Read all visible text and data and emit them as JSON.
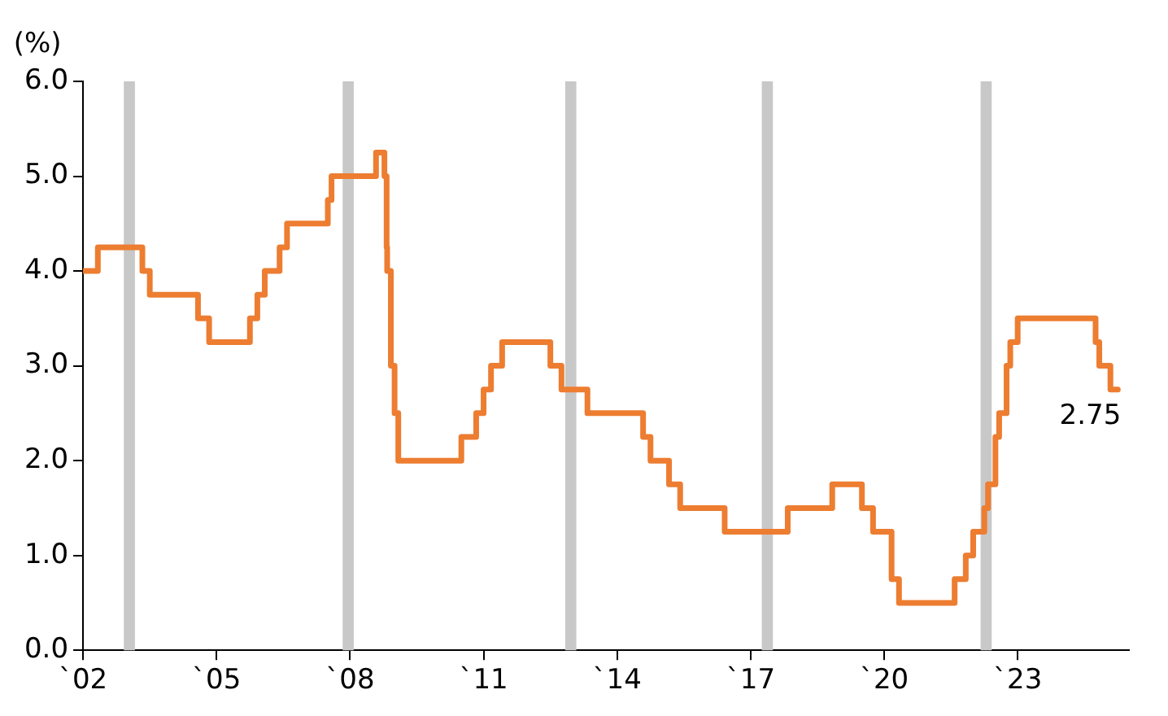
{
  "chart_data": {
    "type": "step",
    "ylabel": "(%)",
    "x": [
      "2002-01",
      "2002-05",
      "2003-05",
      "2003-07",
      "2004-08",
      "2004-11",
      "2005-10",
      "2005-12",
      "2006-02",
      "2006-06",
      "2006-08",
      "2007-07",
      "2007-08",
      "2008-08",
      "2008-10-09",
      "2008-10-27",
      "2008-11",
      "2008-12",
      "2009-01",
      "2009-02",
      "2010-07",
      "2010-11",
      "2011-01",
      "2011-03",
      "2011-06",
      "2012-07",
      "2012-10",
      "2013-05",
      "2014-08",
      "2014-10",
      "2015-03",
      "2015-06",
      "2016-06",
      "2017-11",
      "2018-11",
      "2019-07",
      "2019-10",
      "2020-03",
      "2020-05",
      "2021-08",
      "2021-11",
      "2022-01",
      "2022-04",
      "2022-05",
      "2022-07",
      "2022-08",
      "2022-10",
      "2022-11",
      "2023-01",
      "2024-10",
      "2024-11",
      "2025-02",
      "2025-04"
    ],
    "series": [
      {
        "color": "#ed7d31",
        "values": [
          4.0,
          4.25,
          4.0,
          3.75,
          3.5,
          3.25,
          3.5,
          3.75,
          4.0,
          4.25,
          4.5,
          4.75,
          5.0,
          5.25,
          5.0,
          4.25,
          4.0,
          3.0,
          2.5,
          2.0,
          2.25,
          2.5,
          2.75,
          3.0,
          3.25,
          3.0,
          2.75,
          2.5,
          2.25,
          2.0,
          1.75,
          1.5,
          1.25,
          1.5,
          1.75,
          1.5,
          1.25,
          0.75,
          0.5,
          0.75,
          1.0,
          1.25,
          1.5,
          1.75,
          2.25,
          2.5,
          3.0,
          3.25,
          3.5,
          3.25,
          3.0,
          2.75,
          2.75
        ]
      }
    ],
    "xlim": [
      "2002",
      "2025-07"
    ],
    "xticks": [
      {
        "value": "2002",
        "label": "`02"
      },
      {
        "value": "2005",
        "label": "`05"
      },
      {
        "value": "2008",
        "label": "`08"
      },
      {
        "value": "2011",
        "label": "`11"
      },
      {
        "value": "2014",
        "label": "`14"
      },
      {
        "value": "2017",
        "label": "`17"
      },
      {
        "value": "2020",
        "label": "`20"
      },
      {
        "value": "2023",
        "label": "`23"
      }
    ],
    "ylim": [
      0,
      6
    ],
    "yticks": [
      {
        "value": 0,
        "label": "0.0"
      },
      {
        "value": 1,
        "label": "1.0"
      },
      {
        "value": 2,
        "label": "2.0"
      },
      {
        "value": 3,
        "label": "3.0"
      },
      {
        "value": 4,
        "label": "4.0"
      },
      {
        "value": 5,
        "label": "5.0"
      },
      {
        "value": 6,
        "label": "6.0"
      }
    ],
    "bands": [
      {
        "axis": "x",
        "from": "2002-12",
        "to": "2003-03",
        "color": "#c8c8c8"
      },
      {
        "axis": "x",
        "from": "2007-11",
        "to": "2008-02",
        "color": "#c8c8c8"
      },
      {
        "axis": "x",
        "from": "2012-11",
        "to": "2013-02",
        "color": "#c8c8c8"
      },
      {
        "axis": "x",
        "from": "2017-04",
        "to": "2017-07",
        "color": "#c8c8c8"
      },
      {
        "axis": "x",
        "from": "2022-03",
        "to": "2022-06",
        "color": "#c8c8c8"
      }
    ],
    "annotations": [
      {
        "text": "2.75",
        "x": "2025-04",
        "y": 2.75
      }
    ],
    "grid": false,
    "legend": false,
    "marker": "none",
    "line_style": "solid"
  }
}
